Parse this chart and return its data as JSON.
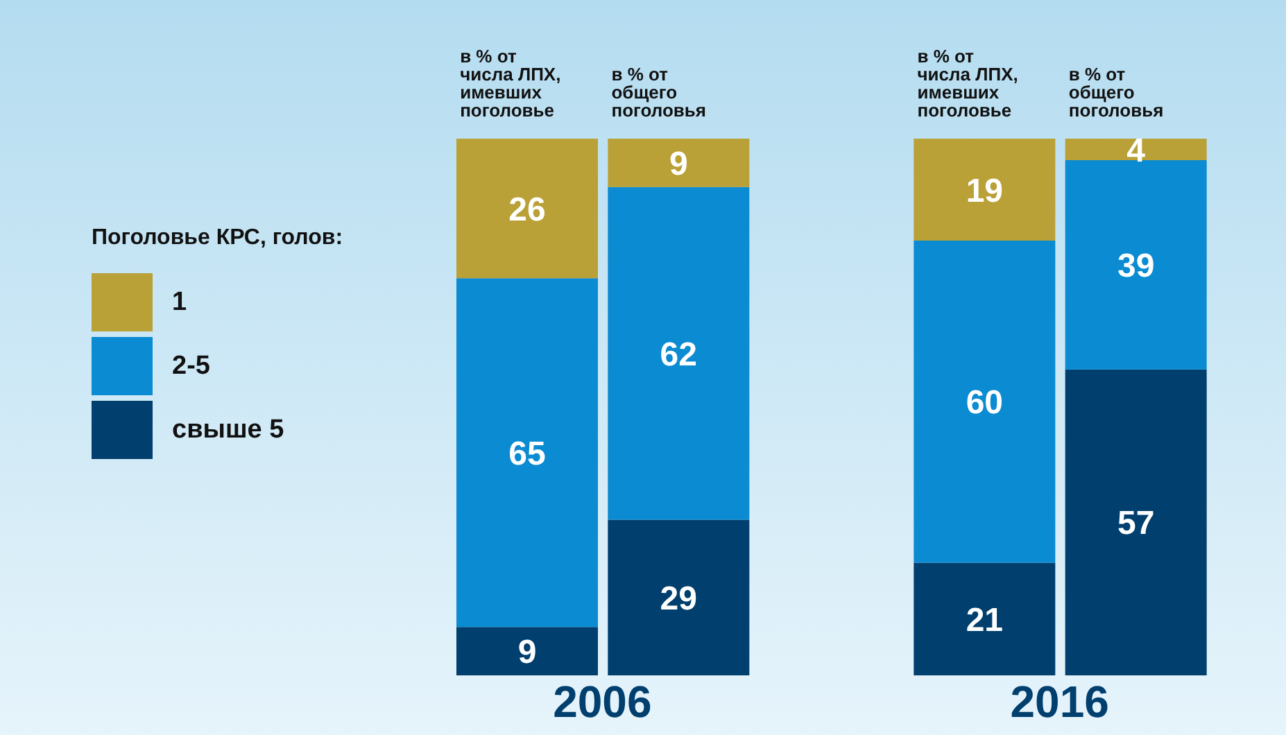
{
  "chart_data": {
    "type": "bar",
    "stacked": true,
    "data_labels": true,
    "legend": "left",
    "legend_title": "Поголовье КРС, голов:",
    "categories": [
      "в % от числа ЛПХ, имевших поголовье",
      "в % от общего поголовья",
      "в % от числа ЛПХ, имевших поголовье",
      "в % от общего поголовья"
    ],
    "series": [
      {
        "name": "свыше 5",
        "color": "#003f6e",
        "values": [
          9,
          29,
          21,
          57
        ]
      },
      {
        "name": "2-5",
        "color": "#0a8bd2",
        "values": [
          65,
          62,
          60,
          39
        ]
      },
      {
        "name": "1",
        "color": "#b9a037",
        "values": [
          26,
          9,
          19,
          4
        ]
      }
    ],
    "annotations": [
      "2006",
      "2016"
    ]
  }
}
